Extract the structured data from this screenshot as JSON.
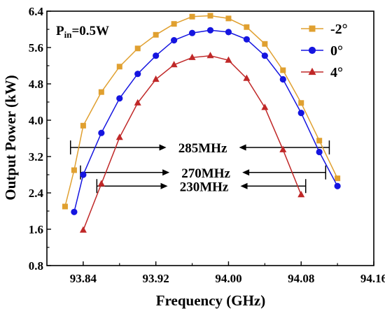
{
  "chart_data": {
    "type": "line",
    "annotation_main": "P",
    "annotation_sub": "in",
    "annotation_rest": "=0.5W",
    "xlabel": "Frequency (GHz)",
    "ylabel": "Output Power (kW)",
    "xlim": [
      93.8,
      94.16
    ],
    "ylim": [
      0.8,
      6.4
    ],
    "xticks": [
      "93.84",
      "93.92",
      "94.00",
      "94.08",
      "94.16"
    ],
    "yticks": [
      "0.8",
      "1.6",
      "2.4",
      "3.2",
      "4.0",
      "4.8",
      "5.6",
      "6.4"
    ],
    "legend_position": "top-right",
    "series": [
      {
        "name": "-2°",
        "color": "#E0A030",
        "marker": "square",
        "x": [
          93.82,
          93.83,
          93.84,
          93.86,
          93.88,
          93.9,
          93.92,
          93.94,
          93.96,
          93.98,
          94.0,
          94.02,
          94.04,
          94.06,
          94.08,
          94.1,
          94.12
        ],
        "y": [
          2.1,
          2.9,
          3.88,
          4.62,
          5.18,
          5.58,
          5.88,
          6.12,
          6.28,
          6.3,
          6.24,
          6.05,
          5.68,
          5.1,
          4.38,
          3.55,
          2.72
        ]
      },
      {
        "name": "0°",
        "color": "#1515E0",
        "marker": "circle",
        "x": [
          93.83,
          93.84,
          93.86,
          93.88,
          93.9,
          93.92,
          93.94,
          93.96,
          93.98,
          94.0,
          94.02,
          94.04,
          94.06,
          94.08,
          94.1,
          94.12
        ],
        "y": [
          1.98,
          2.8,
          3.72,
          4.48,
          5.02,
          5.42,
          5.76,
          5.92,
          5.98,
          5.94,
          5.78,
          5.42,
          4.9,
          4.16,
          3.3,
          2.55
        ]
      },
      {
        "name": "4°",
        "color": "#C02828",
        "marker": "triangle",
        "x": [
          93.84,
          93.86,
          93.88,
          93.9,
          93.92,
          93.94,
          93.96,
          93.98,
          94.0,
          94.02,
          94.04,
          94.06,
          94.08
        ],
        "y": [
          1.58,
          2.6,
          3.62,
          4.38,
          4.9,
          5.22,
          5.38,
          5.42,
          5.32,
          4.92,
          4.28,
          3.35,
          2.36
        ]
      }
    ],
    "bandwidth_markers": [
      {
        "label": "285MHz",
        "x_start": 93.826,
        "x_end": 94.111,
        "y": 3.4
      },
      {
        "label": "270MHz",
        "x_start": 93.837,
        "x_end": 94.107,
        "y": 2.85
      },
      {
        "label": "230MHz",
        "x_start": 93.855,
        "x_end": 94.085,
        "y": 2.55
      }
    ]
  }
}
